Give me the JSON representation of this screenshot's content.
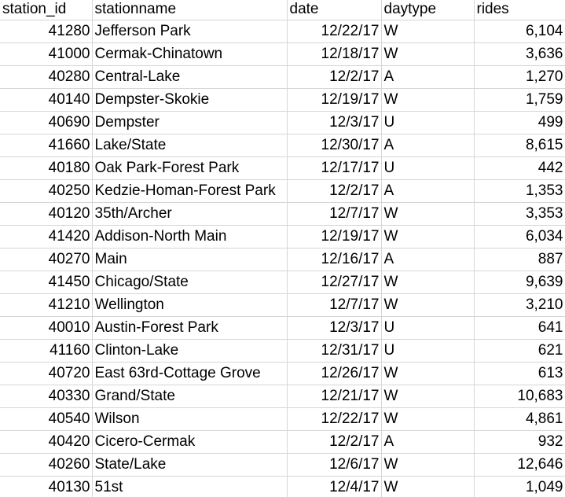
{
  "sheet": {
    "columns": [
      "station_id",
      "stationname",
      "date",
      "daytype",
      "rides"
    ],
    "rows": [
      [
        "41280",
        "Jefferson Park",
        "12/22/17",
        "W",
        "6,104"
      ],
      [
        "41000",
        "Cermak-Chinatown",
        "12/18/17",
        "W",
        "3,636"
      ],
      [
        "40280",
        "Central-Lake",
        "12/2/17",
        "A",
        "1,270"
      ],
      [
        "40140",
        "Dempster-Skokie",
        "12/19/17",
        "W",
        "1,759"
      ],
      [
        "40690",
        "Dempster",
        "12/3/17",
        "U",
        "499"
      ],
      [
        "41660",
        "Lake/State",
        "12/30/17",
        "A",
        "8,615"
      ],
      [
        "40180",
        "Oak Park-Forest Park",
        "12/17/17",
        "U",
        "442"
      ],
      [
        "40250",
        "Kedzie-Homan-Forest Park",
        "12/2/17",
        "A",
        "1,353"
      ],
      [
        "40120",
        "35th/Archer",
        "12/7/17",
        "W",
        "3,353"
      ],
      [
        "41420",
        "Addison-North Main",
        "12/19/17",
        "W",
        "6,034"
      ],
      [
        "40270",
        "Main",
        "12/16/17",
        "A",
        "887"
      ],
      [
        "41450",
        "Chicago/State",
        "12/27/17",
        "W",
        "9,639"
      ],
      [
        "41210",
        "Wellington",
        "12/7/17",
        "W",
        "3,210"
      ],
      [
        "40010",
        "Austin-Forest Park",
        "12/3/17",
        "U",
        "641"
      ],
      [
        "41160",
        "Clinton-Lake",
        "12/31/17",
        "U",
        "621"
      ],
      [
        "40720",
        "East 63rd-Cottage Grove",
        "12/26/17",
        "W",
        "613"
      ],
      [
        "40330",
        "Grand/State",
        "12/21/17",
        "W",
        "10,683"
      ],
      [
        "40540",
        "Wilson",
        "12/22/17",
        "W",
        "4,861"
      ],
      [
        "40420",
        "Cicero-Cermak",
        "12/2/17",
        "A",
        "932"
      ],
      [
        "40260",
        "State/Lake",
        "12/6/17",
        "W",
        "12,646"
      ],
      [
        "40130",
        "51st",
        "12/4/17",
        "W",
        "1,049"
      ]
    ]
  }
}
